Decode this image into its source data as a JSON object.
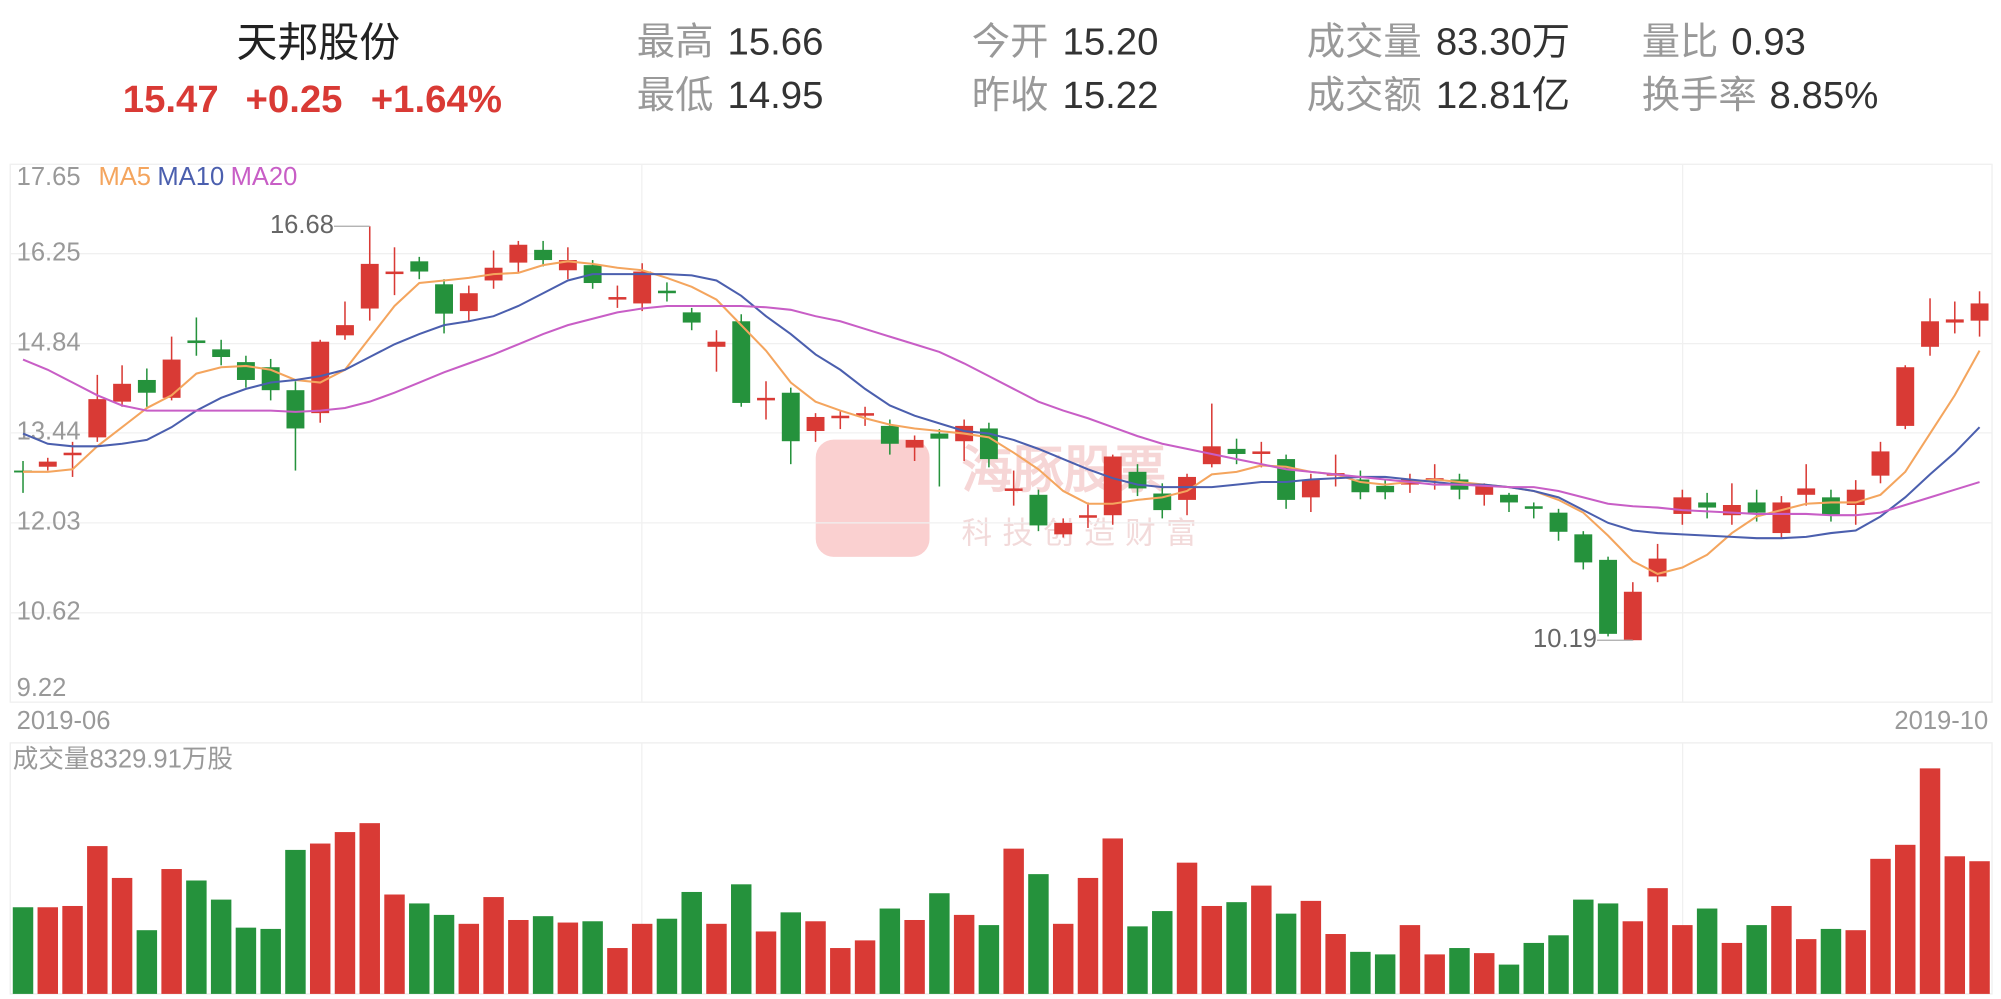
{
  "header": {
    "title": "天邦股份",
    "price": "15.47",
    "change": "+0.25",
    "change_pct": "+1.64%",
    "stats": [
      {
        "label": "最高",
        "value": "15.66"
      },
      {
        "label": "最低",
        "value": "14.95"
      },
      {
        "label": "今开",
        "value": "15.20"
      },
      {
        "label": "昨收",
        "value": "15.22"
      },
      {
        "label": "成交量",
        "value": "83.30万"
      },
      {
        "label": "成交额",
        "value": "12.81亿"
      },
      {
        "label": "量比",
        "value": "0.93"
      },
      {
        "label": "换手率",
        "value": "8.85%"
      }
    ]
  },
  "watermark": {
    "title": "海豚股票",
    "subtitle": "科技创造财富"
  },
  "chart_data": {
    "type": "candlestick",
    "up_color": "#d93a35",
    "down_color": "#25923c",
    "ylim": [
      9.22,
      17.65
    ],
    "yticks": [
      9.22,
      10.62,
      12.03,
      13.44,
      14.84,
      16.25,
      17.65
    ],
    "grid": true,
    "x_labels": [
      "2019-06",
      "2019-10"
    ],
    "high_label": 16.68,
    "low_label": 10.19,
    "open": [
      12.85,
      12.91,
      13.09,
      13.37,
      13.93,
      14.27,
      13.99,
      14.89,
      14.75,
      14.55,
      14.47,
      14.11,
      13.75,
      14.97,
      15.39,
      15.93,
      16.13,
      15.77,
      15.35,
      15.83,
      16.11,
      16.31,
      15.99,
      16.07,
      15.53,
      15.47,
      15.67,
      15.33,
      14.79,
      15.19,
      13.95,
      14.07,
      13.47,
      13.67,
      13.71,
      13.55,
      13.21,
      13.43,
      13.31,
      13.51,
      12.53,
      12.47,
      11.85,
      12.11,
      12.15,
      12.83,
      12.49,
      12.39,
      12.95,
      13.19,
      13.11,
      13.03,
      12.43,
      12.77,
      12.71,
      12.61,
      12.63,
      12.69,
      12.71,
      12.47,
      12.47,
      12.29,
      12.19,
      11.85,
      11.45,
      10.19,
      11.19,
      12.17,
      12.35,
      12.15,
      12.35,
      11.87,
      12.47,
      12.43,
      12.31,
      12.77,
      13.55,
      14.79,
      15.17,
      15.2
    ],
    "high": [
      13.0,
      13.05,
      13.3,
      14.35,
      14.5,
      14.45,
      14.95,
      15.25,
      14.9,
      14.65,
      14.6,
      14.25,
      14.9,
      15.5,
      16.68,
      16.35,
      16.2,
      15.85,
      15.75,
      16.3,
      16.45,
      16.45,
      16.35,
      16.15,
      15.75,
      16.1,
      15.8,
      15.4,
      15.05,
      15.3,
      14.25,
      14.15,
      13.75,
      13.8,
      13.85,
      13.65,
      13.4,
      13.5,
      13.65,
      13.6,
      12.85,
      12.55,
      12.1,
      12.35,
      13.1,
      12.95,
      12.65,
      12.8,
      13.9,
      13.35,
      13.3,
      13.1,
      12.8,
      13.1,
      12.85,
      12.7,
      12.8,
      12.95,
      12.8,
      12.65,
      12.5,
      12.35,
      12.25,
      11.9,
      11.5,
      11.1,
      11.7,
      12.55,
      12.5,
      12.65,
      12.55,
      12.45,
      12.95,
      12.55,
      12.7,
      13.3,
      14.5,
      15.55,
      15.5,
      15.66
    ],
    "low": [
      12.5,
      12.85,
      12.75,
      13.3,
      13.85,
      13.85,
      13.95,
      14.65,
      14.5,
      14.15,
      13.95,
      12.85,
      13.6,
      14.9,
      15.2,
      15.6,
      15.85,
      15.0,
      15.2,
      15.7,
      15.95,
      16.05,
      15.85,
      15.7,
      15.4,
      15.35,
      15.5,
      15.05,
      14.4,
      13.85,
      13.65,
      12.95,
      13.3,
      13.5,
      13.55,
      13.1,
      13.0,
      12.6,
      13.0,
      12.9,
      12.3,
      11.9,
      11.8,
      11.95,
      12.0,
      12.45,
      12.1,
      12.15,
      12.9,
      12.95,
      12.9,
      12.25,
      12.2,
      12.6,
      12.4,
      12.4,
      12.5,
      12.55,
      12.4,
      12.3,
      12.2,
      12.1,
      11.75,
      11.3,
      10.25,
      10.19,
      11.1,
      12.0,
      12.1,
      12.0,
      12.05,
      11.8,
      12.3,
      12.05,
      12.0,
      12.65,
      13.5,
      14.65,
      15.0,
      14.95
    ],
    "close": [
      12.82,
      12.99,
      13.13,
      13.97,
      14.21,
      14.07,
      14.59,
      14.85,
      14.63,
      14.27,
      14.11,
      13.51,
      14.87,
      15.13,
      16.09,
      15.97,
      15.97,
      15.31,
      15.63,
      16.03,
      16.39,
      16.15,
      16.15,
      15.79,
      15.57,
      15.97,
      15.63,
      15.17,
      14.87,
      13.91,
      13.99,
      13.31,
      13.69,
      13.71,
      13.75,
      13.27,
      13.33,
      13.35,
      13.55,
      13.03,
      12.57,
      11.99,
      12.03,
      12.15,
      13.07,
      12.57,
      12.23,
      12.75,
      13.23,
      13.11,
      13.15,
      12.39,
      12.71,
      12.81,
      12.51,
      12.51,
      12.71,
      12.73,
      12.55,
      12.61,
      12.35,
      12.25,
      11.89,
      11.41,
      10.29,
      10.95,
      11.47,
      12.43,
      12.27,
      12.31,
      12.19,
      12.35,
      12.57,
      12.15,
      12.55,
      13.15,
      14.47,
      15.19,
      15.22,
      15.47
    ],
    "series": [
      {
        "name": "MA5",
        "color": "#f4a55e",
        "values": [
          12.83,
          12.83,
          12.87,
          13.23,
          13.53,
          13.83,
          14.03,
          14.37,
          14.47,
          14.49,
          14.43,
          14.27,
          14.23,
          14.43,
          14.93,
          15.43,
          15.79,
          15.83,
          15.87,
          15.93,
          15.95,
          16.07,
          16.13,
          16.09,
          16.03,
          15.99,
          15.87,
          15.73,
          15.53,
          15.13,
          14.73,
          14.23,
          13.93,
          13.79,
          13.67,
          13.57,
          13.51,
          13.47,
          13.43,
          13.37,
          13.13,
          12.87,
          12.53,
          12.33,
          12.33,
          12.39,
          12.43,
          12.53,
          12.79,
          12.83,
          12.93,
          12.91,
          12.83,
          12.79,
          12.67,
          12.63,
          12.67,
          12.71,
          12.67,
          12.63,
          12.59,
          12.53,
          12.39,
          12.19,
          11.83,
          11.43,
          11.23,
          11.33,
          11.53,
          11.87,
          12.13,
          12.23,
          12.33,
          12.35,
          12.35,
          12.47,
          12.83,
          13.43,
          14.03,
          14.73
        ]
      },
      {
        "name": "MA10",
        "color": "#4b5fae",
        "values": [
          13.43,
          13.27,
          13.23,
          13.23,
          13.27,
          13.33,
          13.53,
          13.79,
          13.99,
          14.13,
          14.23,
          14.27,
          14.33,
          14.43,
          14.63,
          14.83,
          14.99,
          15.13,
          15.19,
          15.27,
          15.43,
          15.63,
          15.83,
          15.93,
          15.93,
          15.93,
          15.93,
          15.91,
          15.83,
          15.59,
          15.27,
          14.99,
          14.67,
          14.43,
          14.13,
          13.87,
          13.71,
          13.59,
          13.47,
          13.43,
          13.33,
          13.19,
          13.03,
          12.87,
          12.73,
          12.63,
          12.59,
          12.59,
          12.59,
          12.63,
          12.67,
          12.67,
          12.71,
          12.73,
          12.75,
          12.75,
          12.71,
          12.67,
          12.63,
          12.63,
          12.59,
          12.53,
          12.43,
          12.23,
          12.03,
          11.91,
          11.87,
          11.85,
          11.83,
          11.81,
          11.79,
          11.79,
          11.81,
          11.87,
          11.91,
          12.13,
          12.43,
          12.79,
          13.13,
          13.53
        ]
      },
      {
        "name": "MA20",
        "color": "#c85ec6",
        "values": [
          14.59,
          14.43,
          14.23,
          14.03,
          13.87,
          13.79,
          13.79,
          13.79,
          13.79,
          13.79,
          13.79,
          13.77,
          13.79,
          13.83,
          13.93,
          14.07,
          14.23,
          14.39,
          14.53,
          14.67,
          14.83,
          14.99,
          15.13,
          15.23,
          15.33,
          15.39,
          15.43,
          15.43,
          15.43,
          15.43,
          15.41,
          15.37,
          15.27,
          15.19,
          15.07,
          14.95,
          14.83,
          14.71,
          14.53,
          14.33,
          14.13,
          13.93,
          13.79,
          13.67,
          13.53,
          13.39,
          13.27,
          13.19,
          13.11,
          13.03,
          12.95,
          12.87,
          12.83,
          12.79,
          12.75,
          12.71,
          12.67,
          12.63,
          12.63,
          12.61,
          12.59,
          12.59,
          12.53,
          12.43,
          12.33,
          12.29,
          12.27,
          12.23,
          12.21,
          12.19,
          12.17,
          12.17,
          12.17,
          12.15,
          12.15,
          12.19,
          12.31,
          12.43,
          12.55,
          12.67
        ]
      }
    ],
    "volume": {
      "label": "成交量8329.91万股",
      "values": [
        5440,
        5440,
        5520,
        9280,
        7280,
        4000,
        7840,
        7120,
        5920,
        4160,
        4080,
        9040,
        9440,
        10160,
        10720,
        6240,
        5680,
        4960,
        4400,
        6080,
        4640,
        4880,
        4480,
        4560,
        2880,
        4400,
        4720,
        6400,
        4400,
        6880,
        3920,
        5120,
        4560,
        2880,
        3360,
        5360,
        4640,
        6320,
        4960,
        4320,
        9120,
        7520,
        4400,
        7280,
        9760,
        4240,
        5200,
        8240,
        5520,
        5760,
        6800,
        5040,
        5840,
        3760,
        2640,
        2480,
        4320,
        2480,
        2880,
        2560,
        1840,
        3200,
        3680,
        5920,
        5680,
        4560,
        6640,
        4320,
        5360,
        3200,
        4320,
        5520,
        3440,
        4080,
        4000,
        8480,
        9360,
        14160,
        8640,
        8329.91
      ]
    }
  }
}
